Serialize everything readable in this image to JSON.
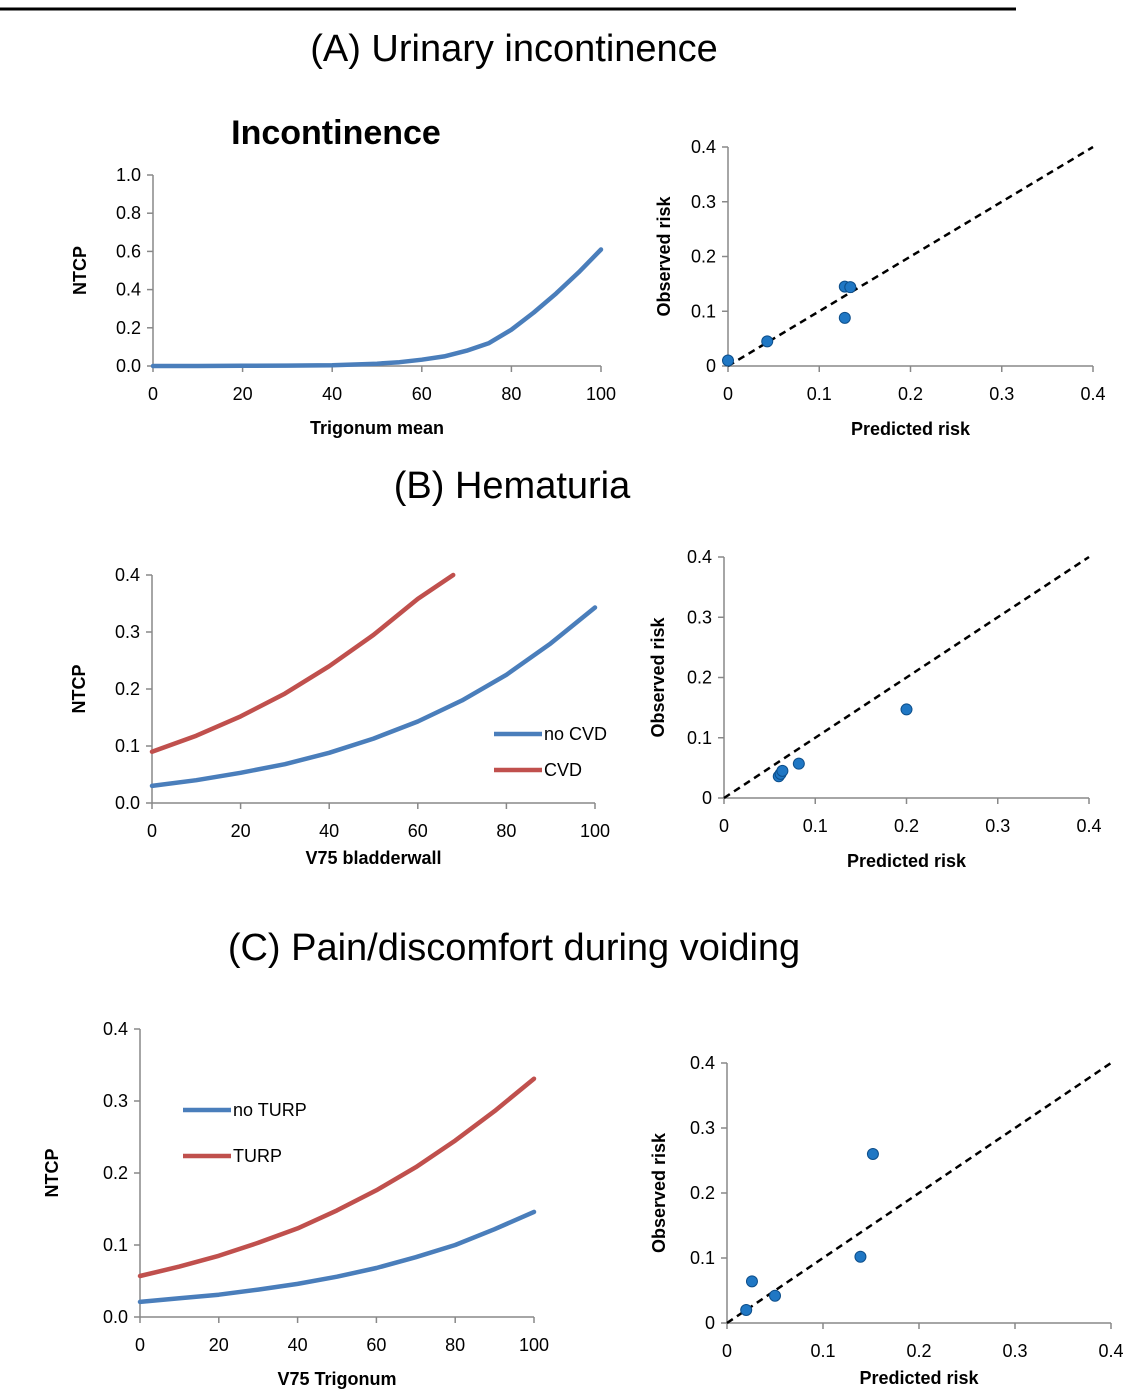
{
  "sections": [
    {
      "title": "(A) Urinary incontinence"
    },
    {
      "title": "(B) Hematuria"
    },
    {
      "title": "(C) Pain/discomfort during voiding"
    }
  ],
  "colors": {
    "blue": "#4a7ebb",
    "red": "#c0504d",
    "point": "#1f77c4",
    "identity": "#000000"
  },
  "chart_data": [
    {
      "id": "a_ntcp",
      "type": "line",
      "title": "Incontinence",
      "xlabel": "Trigonum mean",
      "ylabel": "NTCP",
      "xlim": [
        0,
        100
      ],
      "ylim": [
        0,
        1.0
      ],
      "xticks": [
        "0",
        "20",
        "40",
        "60",
        "80",
        "100"
      ],
      "yticks": [
        "0.0",
        "0.2",
        "0.4",
        "0.6",
        "0.8",
        "1.0"
      ],
      "legend": null,
      "series": [
        {
          "color": "#4a7ebb",
          "x": [
            0,
            10,
            20,
            30,
            40,
            50,
            55,
            60,
            65,
            70,
            75,
            80,
            85,
            90,
            95,
            100
          ],
          "y": [
            0.0,
            0.0,
            0.001,
            0.002,
            0.004,
            0.012,
            0.02,
            0.033,
            0.05,
            0.08,
            0.12,
            0.19,
            0.28,
            0.38,
            0.49,
            0.61
          ]
        }
      ]
    },
    {
      "id": "a_cal",
      "type": "scatter",
      "xlabel": "Predicted risk",
      "ylabel": "Observed risk",
      "xlim": [
        0,
        0.4
      ],
      "ylim": [
        0,
        0.4
      ],
      "xticks": [
        "0",
        "0.1",
        "0.2",
        "0.3",
        "0.4"
      ],
      "yticks": [
        "0",
        "0.1",
        "0.2",
        "0.3",
        "0.4"
      ],
      "identity_line": true,
      "points": [
        {
          "x": 0.0,
          "y": 0.01
        },
        {
          "x": 0.043,
          "y": 0.045
        },
        {
          "x": 0.128,
          "y": 0.088
        },
        {
          "x": 0.128,
          "y": 0.145
        },
        {
          "x": 0.134,
          "y": 0.144
        }
      ]
    },
    {
      "id": "b_ntcp",
      "type": "line",
      "xlabel": "V75 bladderwall",
      "ylabel": "NTCP",
      "xlim": [
        0,
        100
      ],
      "ylim": [
        0,
        0.4
      ],
      "xticks": [
        "0",
        "20",
        "40",
        "60",
        "80",
        "100"
      ],
      "yticks": [
        "0.0",
        "0.1",
        "0.2",
        "0.3",
        "0.4"
      ],
      "legend": {
        "position": "right-middle",
        "entries": [
          "no CVD",
          "CVD"
        ]
      },
      "series": [
        {
          "name": "no CVD",
          "color": "#4a7ebb",
          "x": [
            0,
            10,
            20,
            30,
            40,
            50,
            60,
            70,
            80,
            90,
            100
          ],
          "y": [
            0.03,
            0.04,
            0.053,
            0.068,
            0.088,
            0.113,
            0.143,
            0.18,
            0.225,
            0.28,
            0.343
          ]
        },
        {
          "name": "CVD",
          "color": "#c0504d",
          "x": [
            0,
            10,
            20,
            30,
            40,
            50,
            60,
            68
          ],
          "y": [
            0.09,
            0.118,
            0.152,
            0.192,
            0.24,
            0.295,
            0.358,
            0.4
          ]
        }
      ]
    },
    {
      "id": "b_cal",
      "type": "scatter",
      "xlabel": "Predicted risk",
      "ylabel": "Observed risk",
      "xlim": [
        0,
        0.4
      ],
      "ylim": [
        0,
        0.4
      ],
      "xticks": [
        "0",
        "0.1",
        "0.2",
        "0.3",
        "0.4"
      ],
      "yticks": [
        "0",
        "0.1",
        "0.2",
        "0.3",
        "0.4"
      ],
      "identity_line": true,
      "points": [
        {
          "x": 0.06,
          "y": 0.036
        },
        {
          "x": 0.062,
          "y": 0.04
        },
        {
          "x": 0.064,
          "y": 0.045
        },
        {
          "x": 0.082,
          "y": 0.057
        },
        {
          "x": 0.2,
          "y": 0.147
        }
      ]
    },
    {
      "id": "c_ntcp",
      "type": "line",
      "xlabel": "V75 Trigonum",
      "ylabel": "NTCP",
      "xlim": [
        0,
        100
      ],
      "ylim": [
        0,
        0.4
      ],
      "xticks": [
        "0",
        "20",
        "40",
        "60",
        "80",
        "100"
      ],
      "yticks": [
        "0.0",
        "0.1",
        "0.2",
        "0.3",
        "0.4"
      ],
      "legend": {
        "position": "top-left",
        "entries": [
          "no TURP",
          "TURP"
        ]
      },
      "series": [
        {
          "name": "no TURP",
          "color": "#4a7ebb",
          "x": [
            0,
            10,
            20,
            30,
            40,
            50,
            60,
            70,
            80,
            90,
            100
          ],
          "y": [
            0.021,
            0.026,
            0.031,
            0.038,
            0.046,
            0.056,
            0.068,
            0.083,
            0.1,
            0.122,
            0.146
          ]
        },
        {
          "name": "TURP",
          "color": "#c0504d",
          "x": [
            0,
            10,
            20,
            30,
            40,
            50,
            60,
            70,
            80,
            90,
            100
          ],
          "y": [
            0.057,
            0.07,
            0.085,
            0.103,
            0.123,
            0.148,
            0.176,
            0.208,
            0.245,
            0.286,
            0.331
          ]
        }
      ]
    },
    {
      "id": "c_cal",
      "type": "scatter",
      "xlabel": "Predicted risk",
      "ylabel": "Observed risk",
      "xlim": [
        0,
        0.4
      ],
      "ylim": [
        0,
        0.4
      ],
      "xticks": [
        "0",
        "0.1",
        "0.2",
        "0.3",
        "0.4"
      ],
      "yticks": [
        "0",
        "0.1",
        "0.2",
        "0.3",
        "0.4"
      ],
      "identity_line": true,
      "points": [
        {
          "x": 0.02,
          "y": 0.02
        },
        {
          "x": 0.026,
          "y": 0.064
        },
        {
          "x": 0.05,
          "y": 0.042
        },
        {
          "x": 0.139,
          "y": 0.102
        },
        {
          "x": 0.152,
          "y": 0.26
        }
      ]
    }
  ]
}
